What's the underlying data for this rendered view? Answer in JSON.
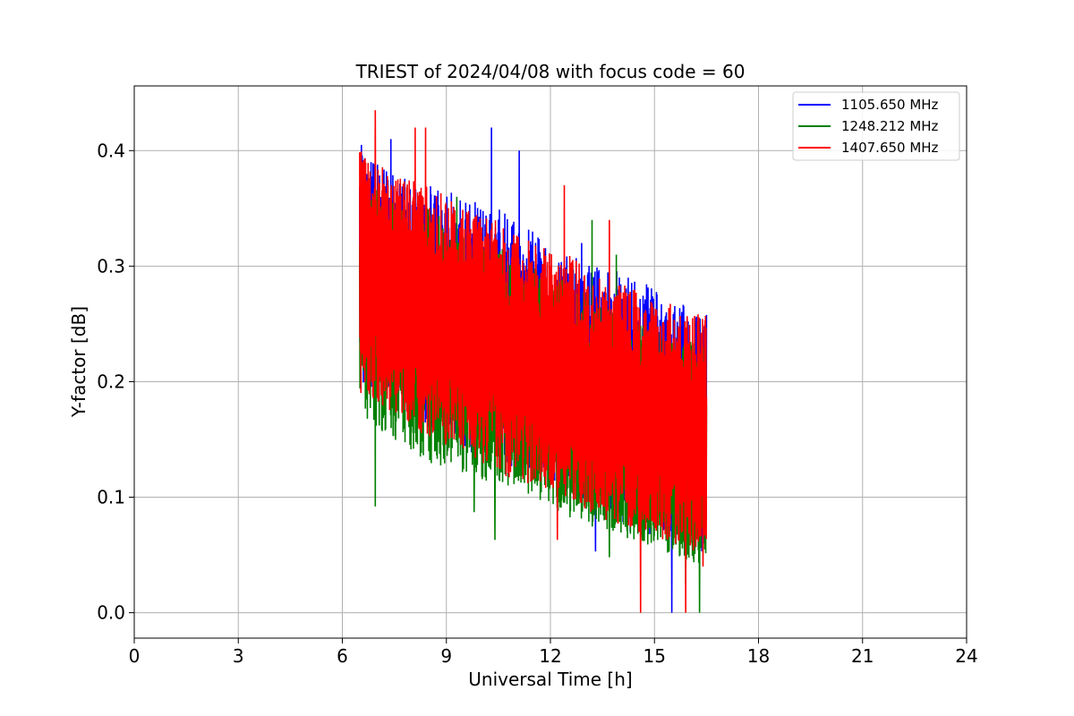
{
  "chart_data": {
    "type": "line",
    "title": "TRIEST of 2024/04/08 with focus code = 60",
    "xlabel": "Universal Time [h]",
    "ylabel": "Y-factor [dB]",
    "xlim": [
      0,
      24
    ],
    "ylim": [
      -0.022,
      0.456
    ],
    "xticks": [
      0,
      3,
      6,
      9,
      12,
      15,
      18,
      21,
      24
    ],
    "yticks": [
      0.0,
      0.1,
      0.2,
      0.3,
      0.4
    ],
    "ytick_labels": [
      "0.0",
      "0.1",
      "0.2",
      "0.3",
      "0.4"
    ],
    "grid": true,
    "legend_position": "top-right",
    "x_range": [
      6.5,
      16.5
    ],
    "series": [
      {
        "name": "1105.650 MHz",
        "color": "#0000ff",
        "x": [
          6.5,
          7.5,
          8.5,
          9.5,
          10.5,
          11.5,
          12.5,
          13.5,
          14.5,
          15.5,
          16.5
        ],
        "upper_envelope": [
          0.4,
          0.38,
          0.37,
          0.36,
          0.35,
          0.33,
          0.31,
          0.3,
          0.29,
          0.27,
          0.26
        ],
        "lower_envelope": [
          0.2,
          0.18,
          0.16,
          0.14,
          0.13,
          0.12,
          0.1,
          0.09,
          0.07,
          0.06,
          0.05
        ],
        "peaks": [
          [
            6.55,
            0.405
          ],
          [
            7.4,
            0.41
          ],
          [
            10.3,
            0.42
          ],
          [
            11.1,
            0.4
          ],
          [
            12.9,
            0.32
          ]
        ],
        "dips": [
          [
            13.3,
            0.053
          ],
          [
            14.3,
            0.07
          ],
          [
            15.5,
            0.0
          ],
          [
            16.1,
            0.05
          ]
        ]
      },
      {
        "name": "1248.212 MHz",
        "color": "#008000",
        "x": [
          6.5,
          7.5,
          8.5,
          9.5,
          10.5,
          11.5,
          12.5,
          13.5,
          14.5,
          15.5,
          16.5
        ],
        "upper_envelope": [
          0.38,
          0.36,
          0.35,
          0.33,
          0.32,
          0.3,
          0.29,
          0.27,
          0.26,
          0.24,
          0.23
        ],
        "lower_envelope": [
          0.17,
          0.15,
          0.13,
          0.12,
          0.11,
          0.1,
          0.08,
          0.07,
          0.06,
          0.05,
          0.04
        ],
        "peaks": [
          [
            6.6,
            0.39
          ],
          [
            9.3,
            0.36
          ],
          [
            13.2,
            0.34
          ],
          [
            13.9,
            0.31
          ]
        ],
        "dips": [
          [
            6.95,
            0.092
          ],
          [
            9.8,
            0.087
          ],
          [
            10.4,
            0.063
          ],
          [
            13.7,
            0.048
          ],
          [
            15.9,
            0.025
          ],
          [
            16.3,
            0.0
          ]
        ]
      },
      {
        "name": "1407.650 MHz",
        "color": "#ff0000",
        "x": [
          6.5,
          7.5,
          8.5,
          9.5,
          10.5,
          11.5,
          12.5,
          13.5,
          14.5,
          15.5,
          16.5
        ],
        "upper_envelope": [
          0.4,
          0.38,
          0.37,
          0.35,
          0.34,
          0.32,
          0.31,
          0.29,
          0.28,
          0.27,
          0.26
        ],
        "lower_envelope": [
          0.19,
          0.17,
          0.15,
          0.14,
          0.12,
          0.11,
          0.1,
          0.08,
          0.07,
          0.06,
          0.05
        ],
        "peaks": [
          [
            6.95,
            0.435
          ],
          [
            8.1,
            0.42
          ],
          [
            8.4,
            0.42
          ],
          [
            12.4,
            0.37
          ],
          [
            13.7,
            0.34
          ],
          [
            15.9,
            0.3
          ]
        ],
        "dips": [
          [
            12.2,
            0.063
          ],
          [
            14.6,
            0.0
          ],
          [
            15.9,
            0.0
          ],
          [
            16.4,
            0.04
          ]
        ]
      }
    ]
  }
}
